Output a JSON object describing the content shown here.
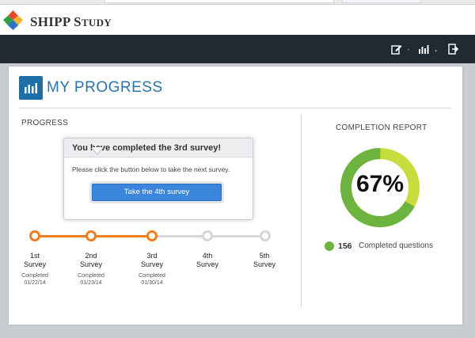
{
  "app": {
    "brand_main": "SHIPP S",
    "brand_rest": "TUDY"
  },
  "nav": {
    "icons": [
      "edit-icon",
      "bar-chart-icon",
      "logout-icon"
    ]
  },
  "page": {
    "title": "MY PROGRESS",
    "progress_label": "PROGRESS",
    "report_label": "COMPLETION REPORT"
  },
  "popup": {
    "title": "You have completed the 3rd survey!",
    "body": "Please click the button below to take the next survey.",
    "button_label": "Take the 4th survey"
  },
  "steps": [
    {
      "line1": "1st",
      "line2": "Survey",
      "status": "Completed",
      "date": "01/22/14",
      "done": true
    },
    {
      "line1": "2nd",
      "line2": "Survey",
      "status": "Completed",
      "date": "01/23/14",
      "done": true
    },
    {
      "line1": "3rd",
      "line2": "Survey",
      "status": "Completed",
      "date": "01/30/14",
      "done": true
    },
    {
      "line1": "4th",
      "line2": "Survey",
      "done": false
    },
    {
      "line1": "5th",
      "line2": "Survey",
      "done": false
    }
  ],
  "report": {
    "percent_label": "67%",
    "percent": 67,
    "completed_count": "156",
    "completed_text": "Completed questions"
  },
  "colors": {
    "accent_blue": "#2a74aa",
    "timeline_done": "#f07d1f",
    "timeline_pending": "#d6d6d6",
    "donut_done": "#6cb33f",
    "donut_rest": "#c7dc3d"
  }
}
